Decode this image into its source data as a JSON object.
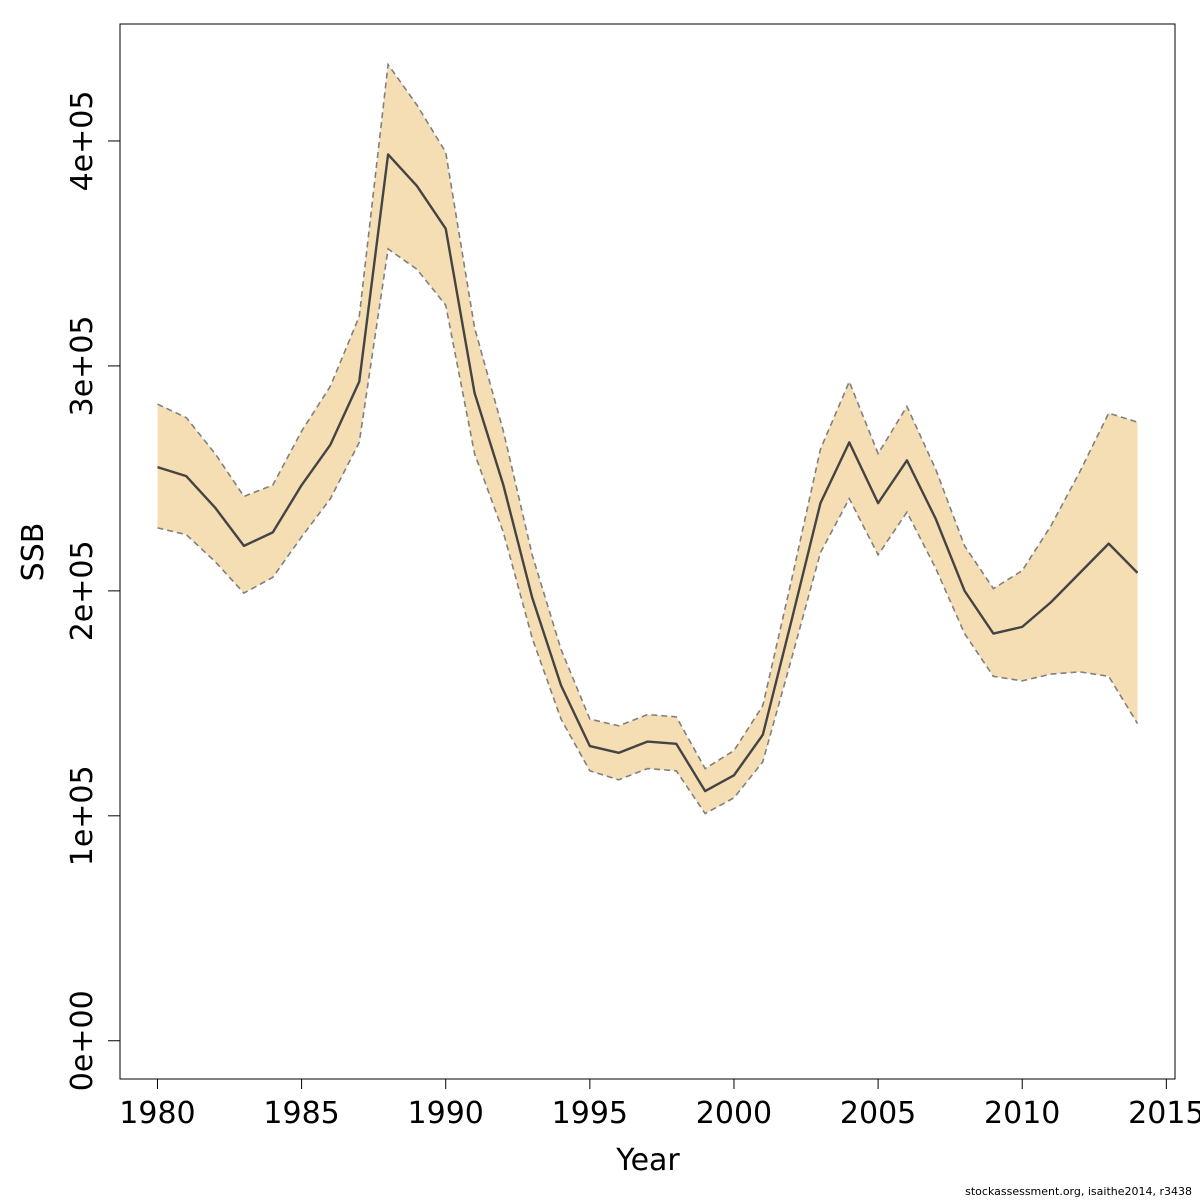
{
  "chart_data": {
    "type": "line",
    "title": "",
    "xlabel": "Year",
    "ylabel": "SSB",
    "xlim": [
      1978.7,
      2015.3
    ],
    "ylim": [
      -17000,
      452000
    ],
    "x_ticks": [
      1980,
      1985,
      1990,
      1995,
      2000,
      2005,
      2010,
      2015
    ],
    "y_ticks": [
      0,
      100000,
      200000,
      300000,
      400000
    ],
    "x_tick_labels": [
      "1980",
      "1985",
      "1990",
      "1995",
      "2000",
      "2005",
      "2010",
      "2015"
    ],
    "y_tick_labels": [
      "0e+00",
      "1e+05",
      "2e+05",
      "3e+05",
      "4e+05"
    ],
    "grid": false,
    "band_color": "#F5DEB3",
    "line_color": "#444444",
    "bound_line_color": "#808080",
    "x": [
      1980,
      1981,
      1982,
      1983,
      1984,
      1985,
      1986,
      1987,
      1988,
      1989,
      1990,
      1991,
      1992,
      1993,
      1994,
      1995,
      1996,
      1997,
      1998,
      1999,
      2000,
      2001,
      2002,
      2003,
      2004,
      2005,
      2006,
      2007,
      2008,
      2009,
      2010,
      2011,
      2012,
      2013,
      2014
    ],
    "series": [
      {
        "name": "",
        "role": "estimate",
        "values": [
          255000,
          251000,
          237000,
          220000,
          226000,
          247000,
          265000,
          293000,
          394000,
          380000,
          361000,
          288000,
          247000,
          197000,
          158000,
          131000,
          128000,
          133000,
          132000,
          111000,
          118000,
          136000,
          187000,
          239000,
          266000,
          239000,
          258000,
          232000,
          200000,
          181000,
          184000,
          195000,
          208000,
          221000,
          208000
        ]
      },
      {
        "name": "",
        "role": "upper",
        "values": [
          283000,
          277000,
          261000,
          242000,
          247000,
          271000,
          291000,
          322000,
          434000,
          416000,
          395000,
          317000,
          271000,
          216000,
          174000,
          143000,
          140000,
          145000,
          144000,
          121000,
          129000,
          149000,
          205000,
          263000,
          293000,
          261000,
          282000,
          254000,
          220000,
          201000,
          209000,
          229000,
          253000,
          279000,
          275000
        ]
      },
      {
        "name": "",
        "role": "lower",
        "values": [
          228000,
          225000,
          213000,
          199000,
          206000,
          224000,
          241000,
          266000,
          352000,
          343000,
          327000,
          261000,
          226000,
          179000,
          143000,
          120000,
          116000,
          121000,
          120000,
          101000,
          108000,
          124000,
          170000,
          217000,
          241000,
          216000,
          235000,
          210000,
          181000,
          162000,
          160000,
          163000,
          164000,
          162000,
          141000
        ]
      }
    ]
  },
  "footer": {
    "text": "stockassessment.org, isaithe2014, r3438"
  }
}
